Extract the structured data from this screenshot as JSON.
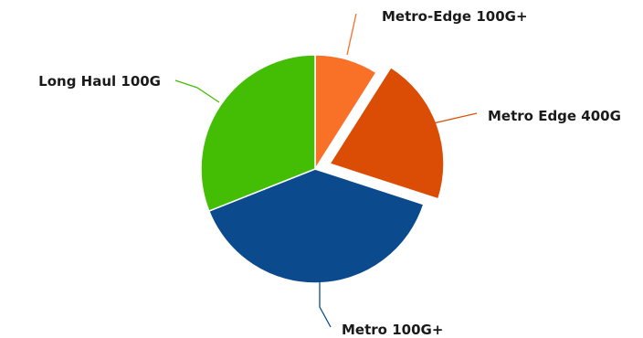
{
  "chart_data": {
    "type": "pie",
    "title": "",
    "slices": [
      {
        "label": "Metro-Edge 100G+",
        "value": 9,
        "color": "#F97027",
        "exploded": false
      },
      {
        "label": "Metro Edge 400G",
        "value": 21,
        "color": "#DB4C05",
        "exploded": true
      },
      {
        "label": "Metro 100G+",
        "value": 39,
        "color": "#0C4A8E",
        "exploded": false
      },
      {
        "label": "Long Haul 100G",
        "value": 31,
        "color": "#43BE05",
        "exploded": false
      }
    ],
    "start_angle_deg": 0,
    "direction": "clockwise",
    "legend": "none",
    "labels": "outside-with-leader-lines"
  }
}
